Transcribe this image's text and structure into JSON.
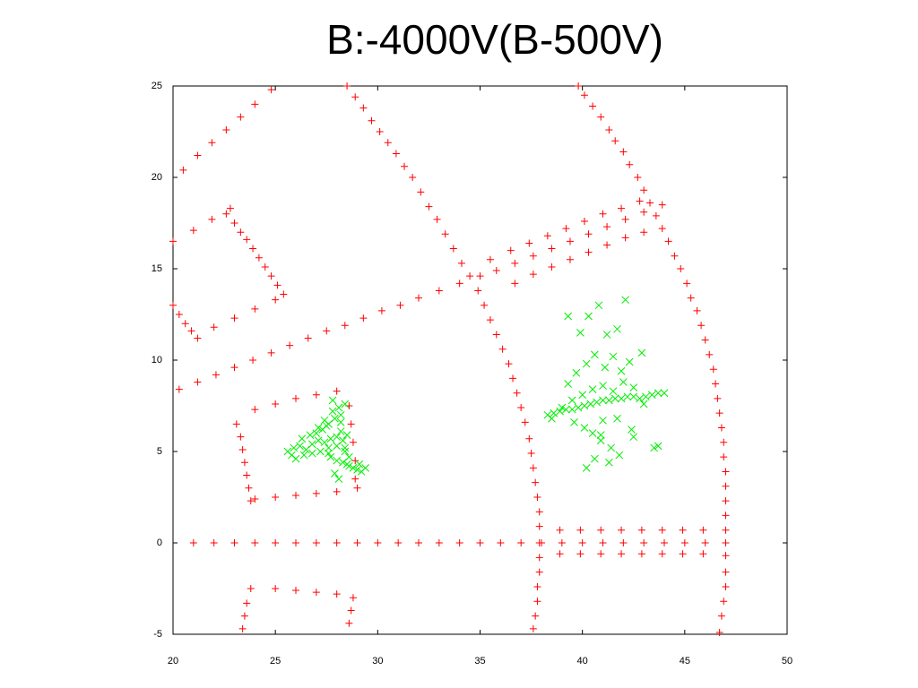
{
  "chart_data": {
    "type": "scatter",
    "title": "B:-4000V(B-500V)",
    "xlim": [
      20,
      50
    ],
    "ylim": [
      -5,
      25
    ],
    "xticks": [
      20,
      25,
      30,
      35,
      40,
      45,
      50
    ],
    "yticks": [
      -5,
      0,
      5,
      10,
      15,
      20,
      25
    ],
    "series": [
      {
        "color": "#ff0000",
        "marker": "+",
        "x": [
          21,
          22,
          23,
          24,
          25,
          26,
          27,
          28,
          29,
          30,
          31,
          32,
          33,
          34,
          35,
          36,
          37,
          38,
          39,
          40,
          41,
          42,
          43,
          44,
          45,
          46
        ],
        "y": [
          0,
          0,
          0,
          0,
          0,
          0,
          0,
          0,
          0,
          0,
          0,
          0,
          0,
          0,
          0,
          0,
          0,
          0,
          0,
          0,
          0,
          0,
          0,
          0,
          0,
          0
        ]
      },
      {
        "color": "#ff0000",
        "marker": "+",
        "x": [
          38.9,
          39.9,
          40.9,
          41.9,
          42.9,
          43.9,
          44.9,
          45.9,
          38.9,
          39.9,
          40.9,
          41.9,
          42.9,
          43.9,
          44.9,
          45.9
        ],
        "y": [
          0.7,
          0.7,
          0.7,
          0.7,
          0.7,
          0.7,
          0.7,
          0.7,
          -0.6,
          -0.6,
          -0.6,
          -0.6,
          -0.6,
          -0.6,
          -0.6,
          -0.6
        ]
      },
      {
        "color": "#ff0000",
        "marker": "+",
        "x": [
          28.5,
          28.9,
          29.3,
          29.7,
          30.1,
          30.5,
          30.9,
          31.3,
          31.7,
          32.1,
          32.5,
          32.9,
          33.3,
          33.7,
          34.1,
          34.5,
          34.9,
          35.2,
          35.5,
          35.8,
          36.1,
          36.4,
          36.6,
          36.8,
          37,
          37.2,
          37.4,
          37.5,
          37.6,
          37.7,
          37.8,
          37.9,
          37.9,
          37.9,
          37.9,
          37.9,
          37.8,
          37.8,
          37.7,
          37.6
        ],
        "y": [
          25,
          24.4,
          23.8,
          23.1,
          22.5,
          21.9,
          21.3,
          20.6,
          20,
          19.2,
          18.4,
          17.7,
          16.9,
          16.1,
          15.3,
          14.6,
          13.8,
          13,
          12.2,
          11.4,
          10.6,
          9.8,
          9,
          8.2,
          7.4,
          6.6,
          5.7,
          4.9,
          4.1,
          3.3,
          2.5,
          1.7,
          0.9,
          0,
          -0.8,
          -1.6,
          -2.4,
          -3.2,
          -4,
          -4.7
        ]
      },
      {
        "color": "#ff0000",
        "marker": "+",
        "x": [
          39.8,
          40.1,
          40.5,
          40.9,
          41.3,
          41.6,
          42,
          42.3,
          42.7,
          43,
          43.3,
          43.6,
          43.9,
          44.2,
          44.5,
          44.8,
          45.1,
          45.3,
          45.6,
          45.8,
          46,
          46.2,
          46.4,
          46.5,
          46.6,
          46.7,
          46.8,
          46.9,
          46.9,
          47,
          47,
          47,
          47,
          47,
          47,
          47,
          47,
          47,
          46.9,
          46.8,
          46.7
        ],
        "y": [
          25,
          24.5,
          23.9,
          23.3,
          22.6,
          22,
          21.4,
          20.7,
          20,
          19.3,
          18.6,
          17.9,
          17.2,
          16.5,
          15.7,
          15,
          14.2,
          13.4,
          12.7,
          11.9,
          11.1,
          10.3,
          9.5,
          8.7,
          7.9,
          7.1,
          6.3,
          5.5,
          4.7,
          3.9,
          3.1,
          2.3,
          1.5,
          0.7,
          0,
          -0.7,
          -1.6,
          -2.4,
          -3.2,
          -4,
          -4.9
        ]
      },
      {
        "color": "#ff0000",
        "marker": "+",
        "x": [
          20.3,
          21.2,
          22.1,
          23,
          23.9,
          24.8,
          25.7,
          26.6,
          27.5,
          28.4,
          29.3,
          30.2,
          31.1,
          32,
          33,
          34,
          35,
          35.8,
          36.7,
          37.6,
          38.5,
          39.4,
          40.3,
          41.2,
          42.1,
          43,
          43.9,
          35.5,
          36.5,
          37.4,
          38.3,
          39.2,
          40.1,
          41,
          41.9,
          42.8,
          36.7,
          37.6,
          38.5,
          39.4,
          40.3,
          41.2,
          42.1,
          43
        ],
        "y": [
          8.4,
          8.8,
          9.2,
          9.6,
          10,
          10.4,
          10.8,
          11.2,
          11.6,
          11.9,
          12.3,
          12.7,
          13,
          13.4,
          13.8,
          14.2,
          14.6,
          14.9,
          15.3,
          15.7,
          16.1,
          16.5,
          16.9,
          17.3,
          17.7,
          18.1,
          18.5,
          15.5,
          16,
          16.4,
          16.8,
          17.2,
          17.6,
          18,
          18.3,
          18.7,
          14.2,
          14.7,
          15.1,
          15.5,
          15.9,
          16.3,
          16.7,
          17
        ]
      },
      {
        "color": "#ff0000",
        "marker": "+",
        "x": [
          20,
          21,
          21.9,
          22.8,
          20.5,
          21.2,
          21.9,
          22.6,
          23.3,
          24,
          24.8,
          22.6,
          23,
          23.3,
          23.6,
          23.9,
          24.2,
          24.5,
          24.8,
          25.1,
          25.4,
          20,
          20.3,
          20.6,
          20.9,
          21.2,
          22,
          23,
          24,
          25
        ],
        "y": [
          16.5,
          17.1,
          17.7,
          18.3,
          20.4,
          21.2,
          21.9,
          22.6,
          23.3,
          24,
          24.8,
          18,
          17.5,
          17,
          16.6,
          16.1,
          15.6,
          15.1,
          14.6,
          14.1,
          13.6,
          13,
          12.5,
          12,
          11.6,
          11.2,
          11.8,
          12.3,
          12.8,
          13.3
        ]
      },
      {
        "color": "#ff0000",
        "marker": "+",
        "x": [
          23.1,
          23.3,
          23.4,
          23.5,
          23.6,
          23.7,
          23.8,
          24,
          25,
          26,
          27,
          28,
          24,
          25,
          26,
          27,
          28,
          29,
          28.6,
          28.7,
          28.8,
          28.9,
          28.9,
          23.4,
          23.5,
          23.6,
          23.8,
          25,
          26,
          27,
          28,
          28.8,
          28.7,
          28.6
        ],
        "y": [
          6.5,
          5.8,
          5.1,
          4.4,
          3.7,
          3,
          2.3,
          7.3,
          7.6,
          7.9,
          8.1,
          8.3,
          2.4,
          2.5,
          2.6,
          2.7,
          2.8,
          3,
          7.5,
          6.5,
          5.5,
          4.5,
          3.5,
          -4.7,
          -4,
          -3.3,
          -2.5,
          -2.5,
          -2.6,
          -2.7,
          -2.8,
          -3,
          -3.7,
          -4.4
        ]
      },
      {
        "color": "#00ee00",
        "marker": "x",
        "x": [
          25.6,
          25.9,
          26.2,
          26.5,
          26.8,
          27.1,
          27.4,
          27.7,
          28,
          28.3,
          26,
          26.4,
          26.8,
          27.2,
          27.6,
          28,
          28.4,
          27,
          27.3,
          27.6,
          27.9,
          28.2,
          27.5,
          27.8,
          28.1,
          28.4,
          27.7,
          28,
          28.3,
          28.5,
          28.6,
          28.8,
          29,
          29.2,
          29.4,
          28.2,
          28.5,
          27.9,
          28.1,
          27.6,
          26.3,
          26.7,
          27.1,
          27.4,
          27.8,
          28.2,
          28.6,
          29.1,
          28.4,
          25.8
        ],
        "y": [
          5,
          5.2,
          5.3,
          5.1,
          5.4,
          5.6,
          5.5,
          5.7,
          5.8,
          5.6,
          4.6,
          4.8,
          4.9,
          5,
          5.2,
          5.3,
          5.2,
          6,
          6.2,
          6.5,
          6.8,
          7,
          6.4,
          7.2,
          7.4,
          7.6,
          4.7,
          4.5,
          4.4,
          4.3,
          4.2,
          4.1,
          4,
          3.9,
          4.1,
          6.1,
          5.9,
          3.8,
          3.5,
          4.9,
          5.7,
          5.9,
          6.3,
          6.7,
          7.8,
          6.6,
          4.7,
          4.3,
          5,
          4.8
        ]
      },
      {
        "color": "#00ee00",
        "marker": "x",
        "x": [
          38.3,
          38.6,
          38.9,
          39.2,
          39.5,
          39.8,
          40.1,
          40.4,
          40.7,
          41,
          41.3,
          41.6,
          41.9,
          42.2,
          42.5,
          42.8,
          43.1,
          43.4,
          43.7,
          44,
          38.5,
          39,
          39.5,
          40,
          40.5,
          41,
          41.5,
          42,
          42.5,
          43,
          39.3,
          39.7,
          40.2,
          40.6,
          41.1,
          41.5,
          41.9,
          42.3,
          39.6,
          40.1,
          40.5,
          40.9,
          41.4,
          41.8,
          42.4,
          43.5,
          39.9,
          40.3,
          40.8,
          41.2,
          41.7,
          42.1,
          40.6,
          40.9,
          41.3,
          41.7,
          42.5,
          43.7,
          40.2,
          41,
          39.3,
          42.9
        ],
        "y": [
          7,
          7.1,
          7.2,
          7.3,
          7.3,
          7.4,
          7.5,
          7.6,
          7.7,
          7.8,
          7.8,
          7.9,
          7.9,
          8,
          8,
          7.9,
          8,
          8.1,
          8.2,
          8.2,
          6.8,
          7.4,
          7.8,
          8.1,
          8.4,
          8.6,
          8.3,
          8.8,
          8.5,
          7.6,
          8.7,
          9.3,
          9.8,
          10.3,
          9.6,
          10.2,
          9.4,
          9.9,
          6.6,
          6.3,
          6,
          5.6,
          5.2,
          4.8,
          6.2,
          5.2,
          11.5,
          12.4,
          13,
          11.4,
          11.7,
          13.3,
          4.6,
          5.9,
          4.4,
          6.8,
          5.8,
          5.3,
          4.1,
          6.7,
          12.4,
          10.4
        ]
      }
    ]
  }
}
